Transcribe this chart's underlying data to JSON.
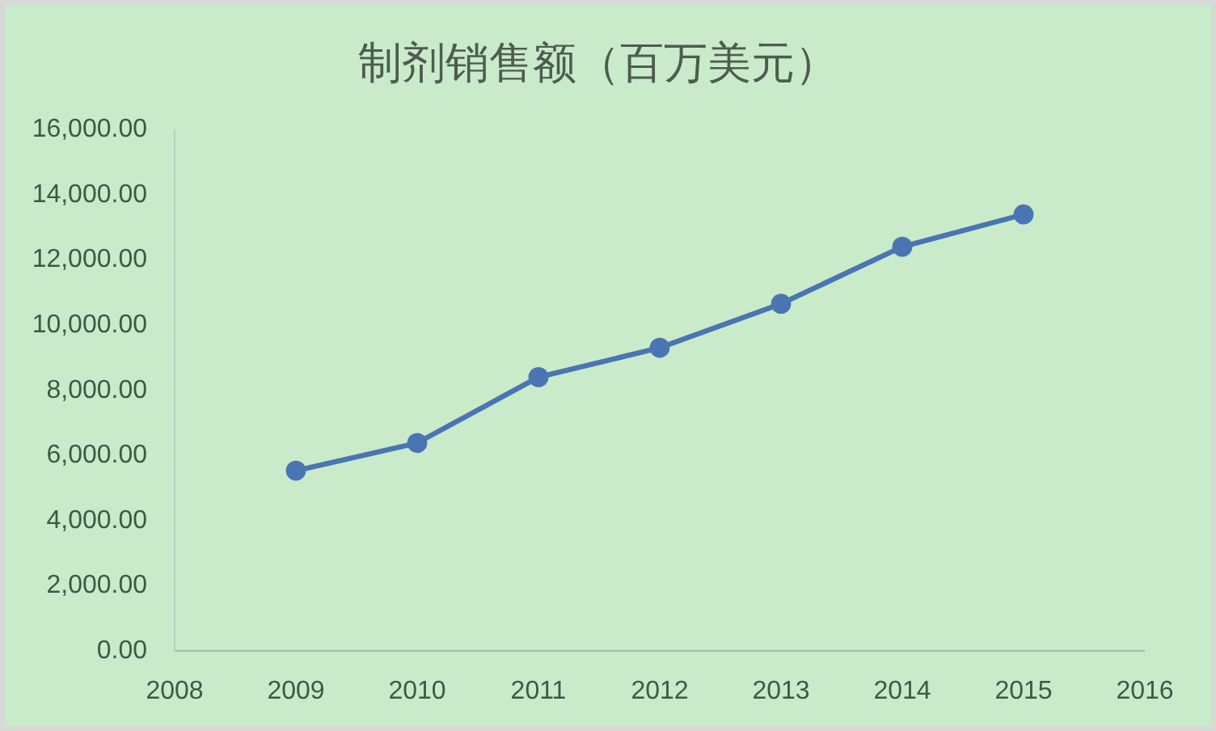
{
  "chart_data": {
    "type": "line",
    "title": "制剂销售额（百万美元）",
    "x": [
      2009,
      2010,
      2011,
      2012,
      2013,
      2014,
      2015
    ],
    "xlim": [
      2008,
      2016
    ],
    "xticks": [
      2008,
      2009,
      2010,
      2011,
      2012,
      2013,
      2014,
      2015,
      2016
    ],
    "ylim": [
      0,
      16000
    ],
    "yticks": [
      {
        "value": 0,
        "label": "0.00"
      },
      {
        "value": 2000,
        "label": "2,000.00"
      },
      {
        "value": 4000,
        "label": "4,000.00"
      },
      {
        "value": 6000,
        "label": "6,000.00"
      },
      {
        "value": 8000,
        "label": "8,000.00"
      },
      {
        "value": 10000,
        "label": "10,000.00"
      },
      {
        "value": 12000,
        "label": "12,000.00"
      },
      {
        "value": 14000,
        "label": "14,000.00"
      },
      {
        "value": 16000,
        "label": "16,000.00"
      }
    ],
    "series": [
      {
        "color": "#4a75b3",
        "values": [
          5530,
          6380,
          8400,
          9300,
          10650,
          12400,
          13390
        ]
      }
    ],
    "marker": "circle",
    "line_style": "solid",
    "grid": false
  }
}
